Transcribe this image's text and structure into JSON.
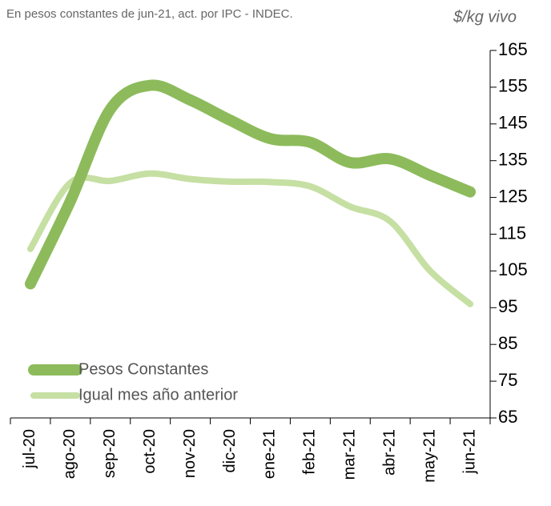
{
  "chart_data": {
    "type": "line",
    "subtitle": "En pesos constantes de jun-21, act. por IPC - INDEC.",
    "y_axis_label": "$/kg  vivo",
    "categories": [
      "jul-20",
      "ago-20",
      "sep-20",
      "oct-20",
      "nov-20",
      "dic-20",
      "ene-21",
      "feb-21",
      "mar-21",
      "abr-21",
      "may-21",
      "jun-21"
    ],
    "series": [
      {
        "name": "Pesos Constantes",
        "color": "#8dbb5b",
        "values": [
          101.5,
          124,
          149,
          155.5,
          151.5,
          146,
          141,
          140,
          134.5,
          135.5,
          131,
          126.5
        ]
      },
      {
        "name": "Igual mes año anterior",
        "color": "#c6dfa3",
        "values": [
          111,
          129,
          129.5,
          131.5,
          130,
          129.3,
          129.2,
          128,
          122.5,
          118.5,
          105,
          96
        ]
      }
    ],
    "ylim": [
      65,
      165
    ],
    "yticks": [
      65,
      75,
      85,
      95,
      105,
      115,
      125,
      135,
      145,
      155,
      165
    ],
    "legend": "lower left"
  }
}
